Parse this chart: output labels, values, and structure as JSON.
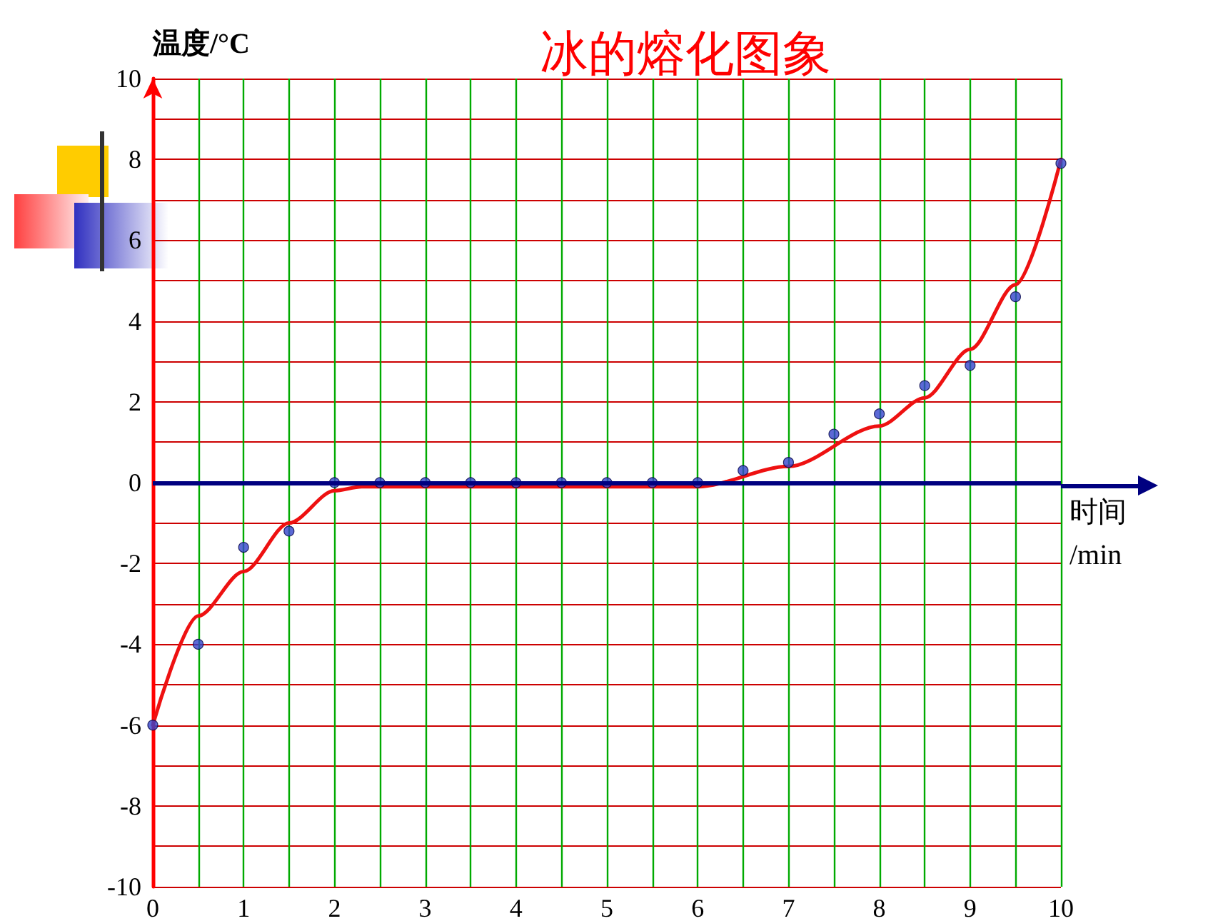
{
  "chart_data": {
    "type": "scatter",
    "title": "冰的熔化图象",
    "xlabel": "时间\n/min",
    "ylabel": "温度/°C",
    "xlim": [
      0,
      10
    ],
    "ylim": [
      -10,
      10
    ],
    "xticks": [
      0,
      {
        "value": 0.5,
        "label": null
      },
      1,
      {
        "value": 1.5,
        "label": null
      },
      2,
      {
        "value": 2.5,
        "label": null
      },
      3,
      {
        "value": 3.5,
        "label": null
      },
      4,
      {
        "value": 4.5,
        "label": null
      },
      5,
      {
        "value": 5.5,
        "label": null
      },
      6,
      {
        "value": 6.5,
        "label": null
      },
      7,
      {
        "value": 7.5,
        "label": null
      },
      8,
      {
        "value": 8.5,
        "label": null
      },
      9,
      {
        "value": 9.5,
        "label": null
      },
      10
    ],
    "yticks": [
      -10,
      {
        "value": -9,
        "label": null
      },
      -8,
      {
        "value": -7,
        "label": null
      },
      -6,
      {
        "value": -5,
        "label": null
      },
      -4,
      {
        "value": -3,
        "label": null
      },
      -2,
      {
        "value": -1,
        "label": null
      },
      0,
      {
        "value": 1,
        "label": null
      },
      2,
      {
        "value": 3,
        "label": null
      },
      4,
      {
        "value": 5,
        "label": null
      },
      6,
      {
        "value": 7,
        "label": null
      },
      8,
      {
        "value": 9,
        "label": null
      },
      10
    ],
    "grid": true,
    "ref_lines": [
      {
        "axis": "y",
        "value": 0,
        "color": "#000080"
      }
    ],
    "series": [
      {
        "type": "line",
        "color": "#ee1111",
        "marker": "none",
        "x": [
          0,
          0.5,
          1,
          1.5,
          2,
          2.3,
          6,
          7,
          8,
          8.5,
          9,
          9.5,
          10
        ],
        "values": [
          -6,
          -3.3,
          -2.2,
          -1,
          -0.2,
          -0.1,
          -0.1,
          0.4,
          1.4,
          2.1,
          3.3,
          4.9,
          8
        ]
      },
      {
        "color": "#3344cc",
        "marker": "circle",
        "x": [
          0,
          0.5,
          1,
          1.5,
          2,
          2.5,
          3,
          3.5,
          4,
          4.5,
          5,
          5.5,
          6,
          6.5,
          7,
          7.5,
          8,
          8.5,
          9,
          9.5,
          10
        ],
        "values": [
          -6,
          -4,
          -1.6,
          -1.2,
          0,
          0,
          0,
          0,
          0,
          0,
          0,
          0,
          0,
          0.3,
          0.5,
          1.2,
          1.7,
          2.4,
          2.9,
          4.6,
          7.9
        ]
      }
    ]
  }
}
